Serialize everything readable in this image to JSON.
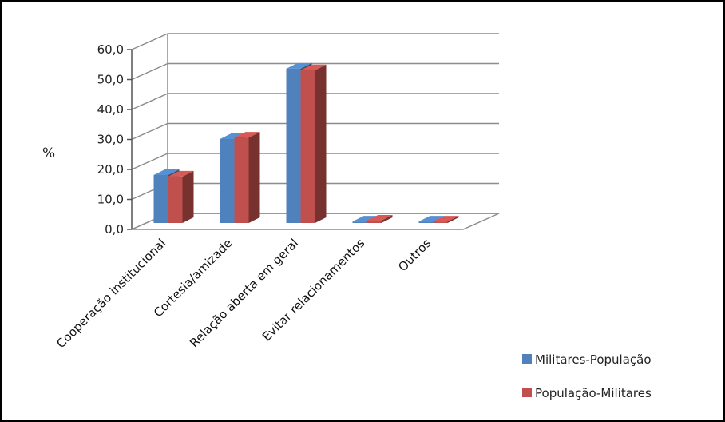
{
  "chart_data": {
    "type": "bar",
    "title": "",
    "xlabel": "",
    "ylabel": "%",
    "ylim": [
      0,
      60
    ],
    "yticks": [
      "0,0",
      "10,0",
      "20,0",
      "30,0",
      "40,0",
      "50,0",
      "60,0"
    ],
    "categories": [
      "Cooperação institucional",
      "Cortesia/amizade",
      "Relação aberta em geral",
      "Evitar relacionamentos",
      "Outros"
    ],
    "series": [
      {
        "name": "Militares-População",
        "color": "#4f81bd",
        "values": [
          16.0,
          28.0,
          51.5,
          0.5,
          0.5
        ]
      },
      {
        "name": "População-Militares",
        "color": "#c0504d",
        "values": [
          15.5,
          28.5,
          51.0,
          0.8,
          0.5
        ]
      }
    ],
    "grid": true,
    "legend_position": "bottom-right",
    "style": "3d-clustered-column"
  }
}
